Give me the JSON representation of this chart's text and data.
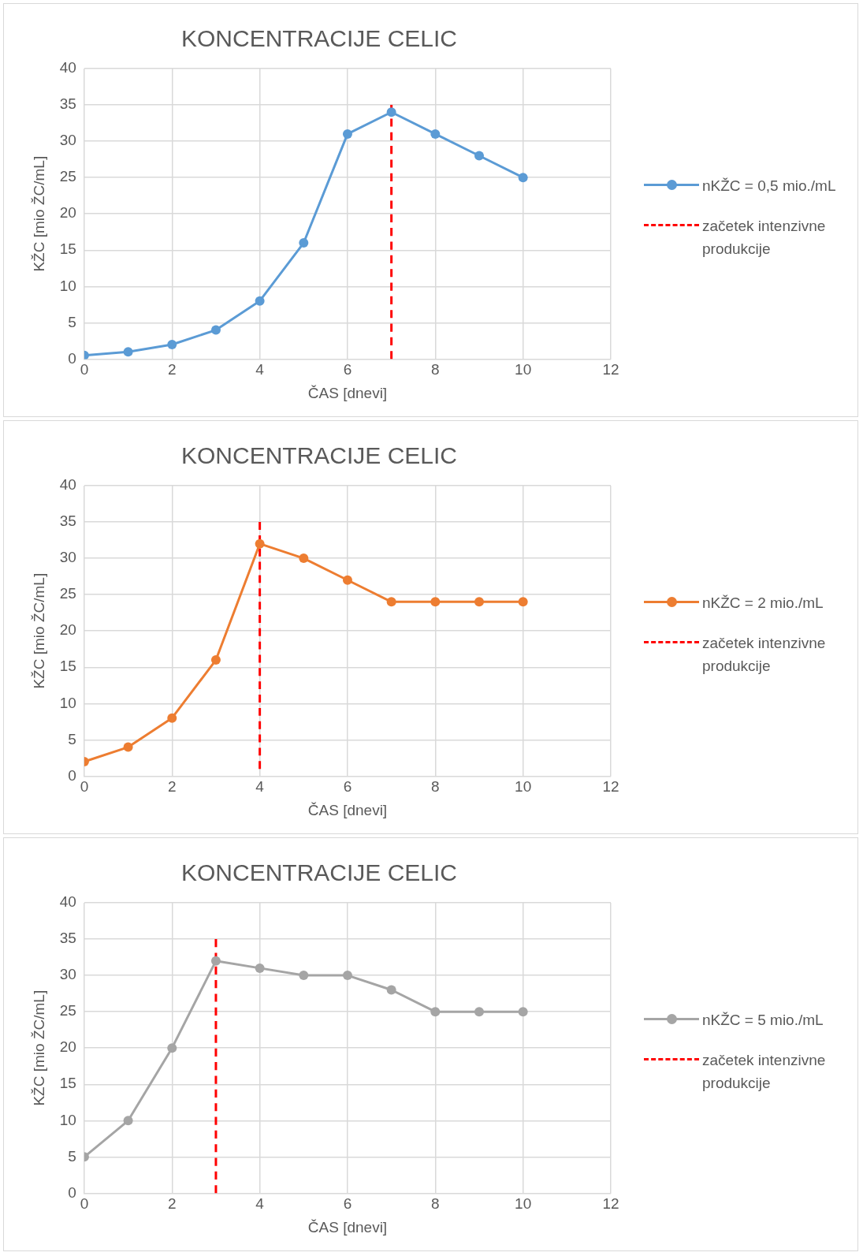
{
  "chart_data": [
    {
      "type": "line",
      "title": "KONCENTRACIJE CELIC",
      "xlabel": "ČAS [dnevi]",
      "ylabel": "KŽC [mio ŽC/mL]",
      "xlim": [
        0,
        12
      ],
      "xticks": [
        0,
        2,
        4,
        6,
        8,
        10,
        12
      ],
      "ylim": [
        0,
        40
      ],
      "yticks": [
        0,
        5,
        10,
        15,
        20,
        25,
        30,
        35,
        40
      ],
      "grid": true,
      "legend": "right",
      "series": [
        {
          "name": "nKŽC = 0,5 mio./mL",
          "color": "#5b9bd5",
          "marker": "circle",
          "line_style": "solid",
          "x": [
            0,
            1,
            2,
            3,
            4,
            5,
            6,
            7,
            8,
            9,
            10
          ],
          "values": [
            0.5,
            1,
            2,
            4,
            8,
            16,
            31,
            34,
            31,
            28,
            25
          ]
        },
        {
          "name": "začetek intenzivne produkcije",
          "color": "#ff0000",
          "marker": "none",
          "line_style": "dashed",
          "x": [
            7,
            7
          ],
          "values": [
            0,
            35
          ]
        }
      ]
    },
    {
      "type": "line",
      "title": "KONCENTRACIJE CELIC",
      "xlabel": "ČAS [dnevi]",
      "ylabel": "KŽC [mio ŽC/mL]",
      "xlim": [
        0,
        12
      ],
      "xticks": [
        0,
        2,
        4,
        6,
        8,
        10,
        12
      ],
      "ylim": [
        0,
        40
      ],
      "yticks": [
        0,
        5,
        10,
        15,
        20,
        25,
        30,
        35,
        40
      ],
      "grid": true,
      "legend": "right",
      "series": [
        {
          "name": "nKŽC = 2 mio./mL",
          "color": "#ed7d31",
          "marker": "circle",
          "line_style": "solid",
          "x": [
            0,
            1,
            2,
            3,
            4,
            5,
            6,
            7,
            8,
            9,
            10
          ],
          "values": [
            2,
            4,
            8,
            16,
            32,
            30,
            27,
            24,
            24,
            24,
            24
          ]
        },
        {
          "name": "začetek intenzivne produkcije",
          "color": "#ff0000",
          "marker": "none",
          "line_style": "dashed",
          "x": [
            4,
            4
          ],
          "values": [
            1,
            35
          ]
        }
      ]
    },
    {
      "type": "line",
      "title": "KONCENTRACIJE CELIC",
      "xlabel": "ČAS [dnevi]",
      "ylabel": "KŽC [mio ŽC/mL]",
      "xlim": [
        0,
        12
      ],
      "xticks": [
        0,
        2,
        4,
        6,
        8,
        10,
        12
      ],
      "ylim": [
        0,
        40
      ],
      "yticks": [
        0,
        5,
        10,
        15,
        20,
        25,
        30,
        35,
        40
      ],
      "grid": true,
      "legend": "right",
      "series": [
        {
          "name": "nKŽC = 5 mio./mL",
          "color": "#a5a5a5",
          "marker": "circle",
          "line_style": "solid",
          "x": [
            0,
            1,
            2,
            3,
            4,
            5,
            6,
            7,
            8,
            9,
            10
          ],
          "values": [
            5,
            10,
            20,
            32,
            31,
            30,
            30,
            28,
            25,
            25,
            25
          ]
        },
        {
          "name": "začetek intenzivne produkcije",
          "color": "#ff0000",
          "marker": "none",
          "line_style": "dashed",
          "x": [
            3,
            3
          ],
          "values": [
            0,
            35
          ]
        }
      ]
    }
  ]
}
